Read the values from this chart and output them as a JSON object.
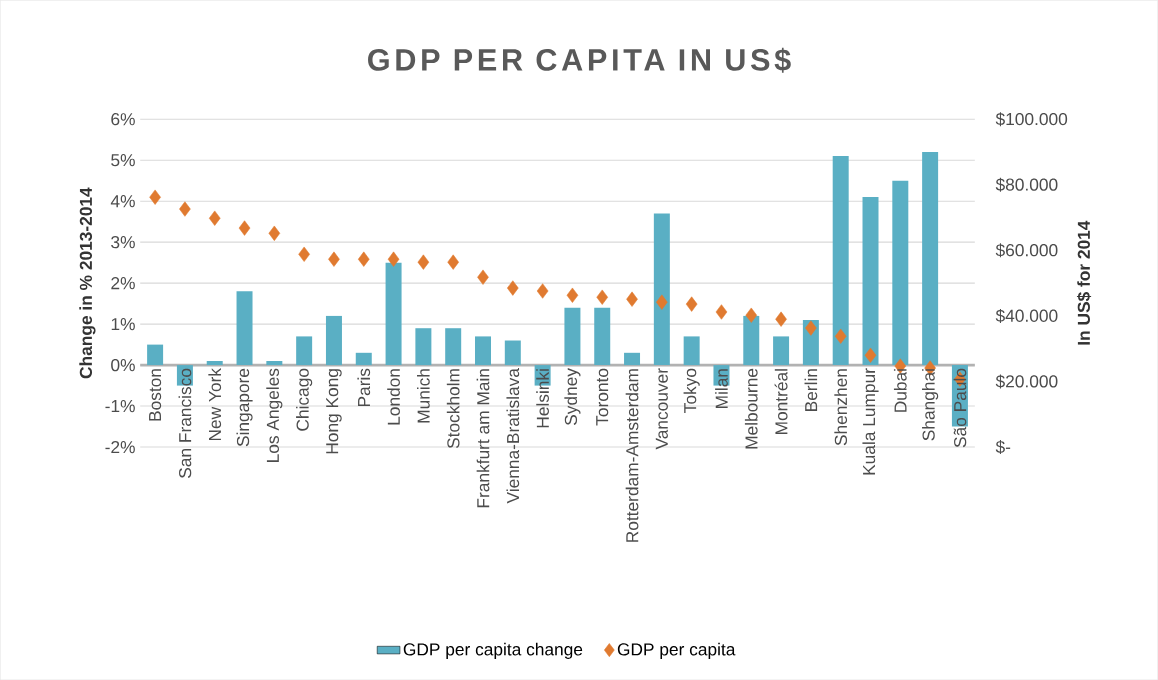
{
  "chart_data": {
    "type": "bar",
    "title": "GDP PER CAPITA IN US$",
    "ylabel": "Change in %  2013-2014",
    "y2label": "In US$ for 2014",
    "categories": [
      "Boston",
      "San Francisco",
      "New York",
      "Singapore",
      "Los Angeles",
      "Chicago",
      "Hong Kong",
      "Paris",
      "London",
      "Munich",
      "Stockholm",
      "Frankfurt am Main",
      "Vienna-Bratislava",
      "Helsinki",
      "Sydney",
      "Toronto",
      "Rotterdam-Amsterdam",
      "Vancouver",
      "Tokyo",
      "Milan",
      "Melbourne",
      "Montréal",
      "Berlin",
      "Shenzhen",
      "Kuala Lumpur",
      "Dubai",
      "Shanghai",
      "São Paulo"
    ],
    "series": [
      {
        "name": "GDP per capita change",
        "color": "#5aafc4",
        "values": [
          0.5,
          -0.5,
          0.1,
          1.8,
          0.1,
          0.7,
          1.2,
          0.3,
          2.5,
          0.9,
          0.9,
          0.7,
          0.6,
          -0.5,
          1.4,
          1.4,
          0.3,
          3.7,
          0.7,
          -0.5,
          1.2,
          0.7,
          1.1,
          5.1,
          4.1,
          4.5,
          5.2,
          -1.5
        ]
      },
      {
        "name": "GDP per capita",
        "color": "#e07a30",
        "type": "scatter",
        "axis": "y2",
        "marker": "diamond",
        "values": [
          76200,
          72600,
          69800,
          66800,
          65200,
          58800,
          57300,
          57300,
          57300,
          56400,
          56400,
          51800,
          48500,
          47600,
          46300,
          45700,
          45100,
          44200,
          43600,
          41200,
          40200,
          39000,
          36300,
          33800,
          28000,
          24700,
          24100,
          20700
        ]
      }
    ],
    "ylim": [
      -2,
      6
    ],
    "yticks": [
      {
        "value": -2,
        "label": "-2%"
      },
      {
        "value": -1,
        "label": "-1%"
      },
      {
        "value": 0,
        "label": "0%"
      },
      {
        "value": 1,
        "label": "1%"
      },
      {
        "value": 2,
        "label": "2%"
      },
      {
        "value": 3,
        "label": "3%"
      },
      {
        "value": 4,
        "label": "4%"
      },
      {
        "value": 5,
        "label": "5%"
      },
      {
        "value": 6,
        "label": "6%"
      }
    ],
    "y2lim": [
      0,
      100000
    ],
    "y2ticks": [
      {
        "value": 0,
        "label": "$-"
      },
      {
        "value": 20000,
        "label": "$20.000"
      },
      {
        "value": 40000,
        "label": "$40.000"
      },
      {
        "value": 60000,
        "label": "$60.000"
      },
      {
        "value": 80000,
        "label": "$80.000"
      },
      {
        "value": 100000,
        "label": "$100.000"
      }
    ],
    "grid": "y",
    "legend": "bottom"
  }
}
